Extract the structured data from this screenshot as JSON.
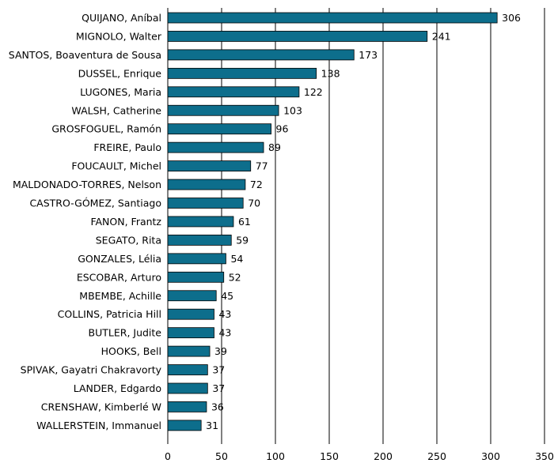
{
  "chart_data": {
    "type": "bar",
    "orientation": "horizontal",
    "title": "",
    "xlabel": "",
    "ylabel": "",
    "xlim": [
      0,
      350
    ],
    "xticks": [
      0,
      50,
      100,
      150,
      200,
      250,
      300,
      350
    ],
    "grid": true,
    "bar_color": "#0d6e8c",
    "categories": [
      "QUIJANO, Aníbal",
      "MIGNOLO, Walter",
      "SANTOS, Boaventura de Sousa",
      "DUSSEL, Enrique",
      "LUGONES, Maria",
      "WALSH, Catherine",
      "GROSFOGUEL, Ramón",
      "FREIRE, Paulo",
      "FOUCAULT, Michel",
      "MALDONADO-TORRES, Nelson",
      "CASTRO-GÓMEZ, Santiago",
      "FANON, Frantz",
      "SEGATO, Rita",
      "GONZALES, Lélia",
      "ESCOBAR, Arturo",
      "MBEMBE, Achille",
      "COLLINS, Patricia Hill",
      "BUTLER, Judite",
      "HOOKS, Bell",
      "SPIVAK, Gayatri Chakravorty",
      "LANDER, Edgardo",
      "CRENSHAW, Kimberlé W",
      "WALLERSTEIN, Immanuel"
    ],
    "values": [
      306,
      241,
      173,
      138,
      122,
      103,
      96,
      89,
      77,
      72,
      70,
      61,
      59,
      54,
      52,
      45,
      43,
      43,
      39,
      37,
      37,
      36,
      31
    ]
  }
}
